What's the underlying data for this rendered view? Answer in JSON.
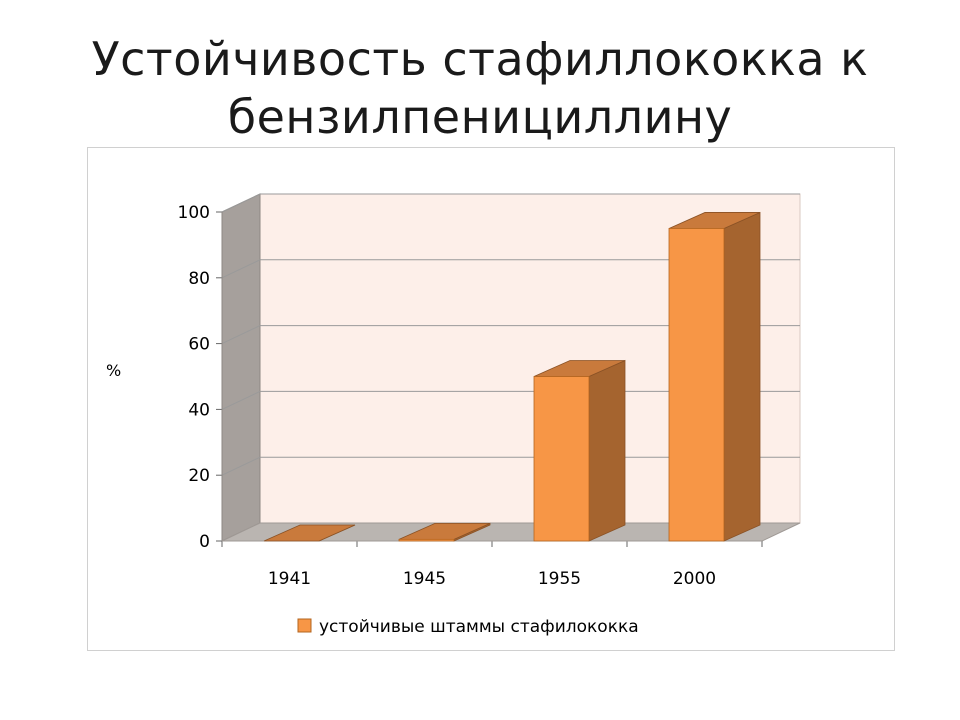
{
  "slide": {
    "title_line1": "Устойчивость стафиллококка к",
    "title_line2": "бензилпенициллину"
  },
  "chart_data": {
    "type": "bar",
    "title": "",
    "xlabel": "",
    "ylabel": "%",
    "categories": [
      "1941",
      "1945",
      "1955",
      "2000"
    ],
    "series": [
      {
        "name": "устойчивые штаммы стафилококка",
        "values": [
          0,
          0.5,
          50,
          95
        ]
      }
    ],
    "ylim": [
      0,
      100
    ],
    "yticks": [
      0,
      20,
      40,
      60,
      80,
      100
    ],
    "grid": true,
    "three_d": true,
    "legend": "bottom",
    "colors": {
      "bar_front": "#f79646",
      "bar_side": "#a5642f",
      "bar_top": "#c97a3c",
      "back_wall": "#fdefe9",
      "side_wall": "#a6a09c",
      "floor": "#bab5b1",
      "gridline": "#9a9a9a"
    }
  }
}
